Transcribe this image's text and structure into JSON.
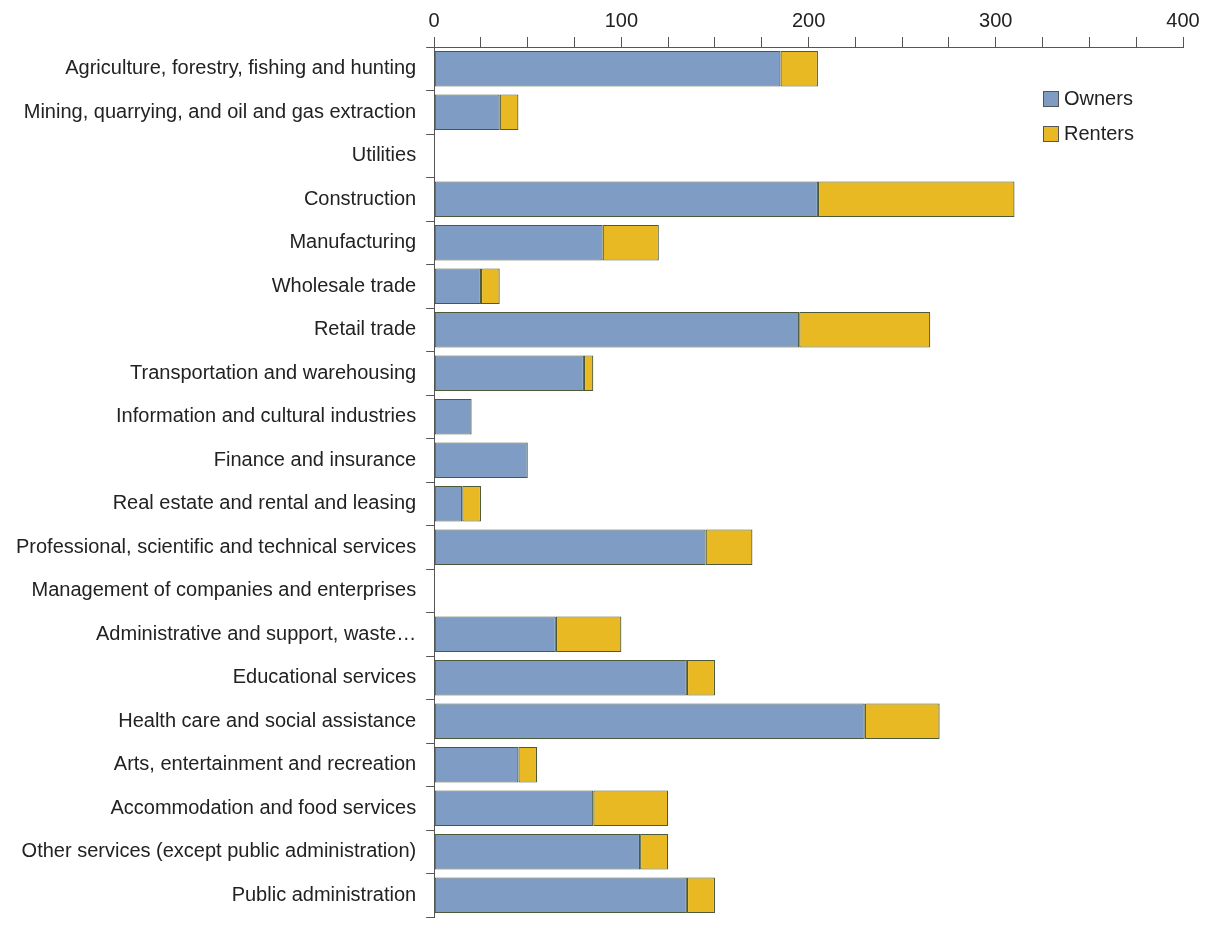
{
  "chart_data": {
    "type": "bar",
    "orientation": "horizontal",
    "stacked": true,
    "categories": [
      "Agriculture, forestry, fishing and hunting",
      "Mining, quarrying, and oil and gas extraction",
      "Utilities",
      "Construction",
      "Manufacturing",
      "Wholesale trade",
      "Retail trade",
      "Transportation and warehousing",
      "Information and cultural industries",
      "Finance and insurance",
      "Real estate and rental and leasing",
      "Professional, scientific and technical services",
      "Management of companies and enterprises",
      "Administrative and support, waste…",
      "Educational services",
      "Health care and social assistance",
      "Arts, entertainment and recreation",
      "Accommodation and food services",
      "Other services (except public administration)",
      "Public administration"
    ],
    "series": [
      {
        "name": "Owners",
        "color": "#7f9cc4",
        "values": [
          185,
          35,
          0,
          205,
          90,
          25,
          195,
          80,
          20,
          50,
          15,
          145,
          0,
          65,
          135,
          230,
          45,
          85,
          110,
          135
        ]
      },
      {
        "name": "Renters",
        "color": "#e8b923",
        "values": [
          20,
          10,
          0,
          105,
          30,
          10,
          70,
          5,
          0,
          0,
          10,
          25,
          0,
          35,
          15,
          40,
          10,
          40,
          15,
          15
        ]
      }
    ],
    "xlim": [
      0,
      400
    ],
    "xticks": [
      0,
      {
        "value": 25,
        "label": null
      },
      {
        "value": 50,
        "label": null
      },
      {
        "value": 75,
        "label": null
      },
      100,
      {
        "value": 125,
        "label": null
      },
      {
        "value": 150,
        "label": null
      },
      {
        "value": 175,
        "label": null
      },
      200,
      {
        "value": 225,
        "label": null
      },
      {
        "value": 250,
        "label": null
      },
      {
        "value": 275,
        "label": null
      },
      300,
      {
        "value": 325,
        "label": null
      },
      {
        "value": 350,
        "label": null
      },
      {
        "value": 375,
        "label": null
      },
      400
    ],
    "grid": false,
    "legend": "top right"
  }
}
